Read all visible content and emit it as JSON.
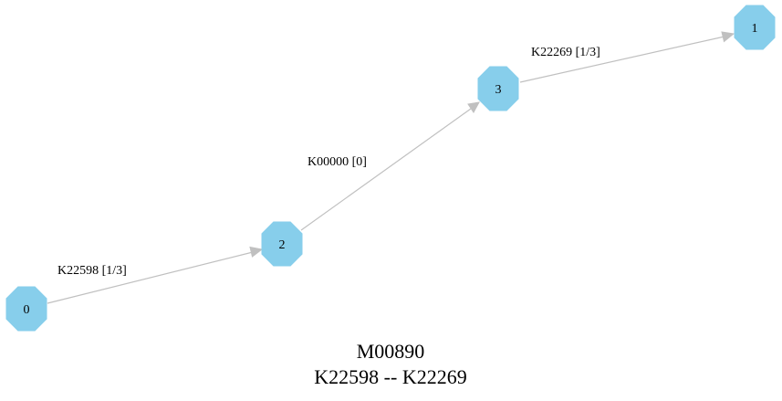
{
  "graph": {
    "title_line1": "M00890",
    "title_line2": "K22598 -- K22269",
    "node_color": "#87ceeb",
    "edge_color": "#c0c0c0",
    "nodes": [
      {
        "id": "0",
        "label": "0"
      },
      {
        "id": "2",
        "label": "2"
      },
      {
        "id": "3",
        "label": "3"
      },
      {
        "id": "1",
        "label": "1"
      }
    ],
    "edges": [
      {
        "from": "0",
        "to": "2",
        "label": "K22598 [1/3]"
      },
      {
        "from": "2",
        "to": "3",
        "label": "K00000 [0]"
      },
      {
        "from": "3",
        "to": "1",
        "label": "K22269 [1/3]"
      }
    ]
  }
}
